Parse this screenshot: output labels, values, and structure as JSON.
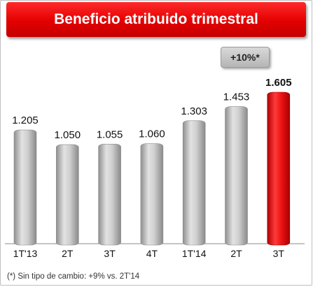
{
  "title": "Beneficio atribuido trimestral",
  "badge": "+10%*",
  "footnote": "(*) Sin tipo de cambio: +9% vs. 2T'14",
  "colors": {
    "title_bg": "#e30000",
    "bar_grey": "#b0b0b0",
    "bar_highlight": "#ee1111"
  },
  "chart_data": {
    "type": "bar",
    "categories": [
      "1T'13",
      "2T",
      "3T",
      "4T",
      "1T'14",
      "2T",
      "3T"
    ],
    "values": [
      1205,
      1050,
      1055,
      1060,
      1303,
      1453,
      1605
    ],
    "value_labels": [
      "1.205",
      "1.050",
      "1.055",
      "1.060",
      "1.303",
      "1.453",
      "1.605"
    ],
    "highlight_index": 6,
    "ylim": [
      0,
      1605
    ],
    "grid": false,
    "legend": "none"
  }
}
